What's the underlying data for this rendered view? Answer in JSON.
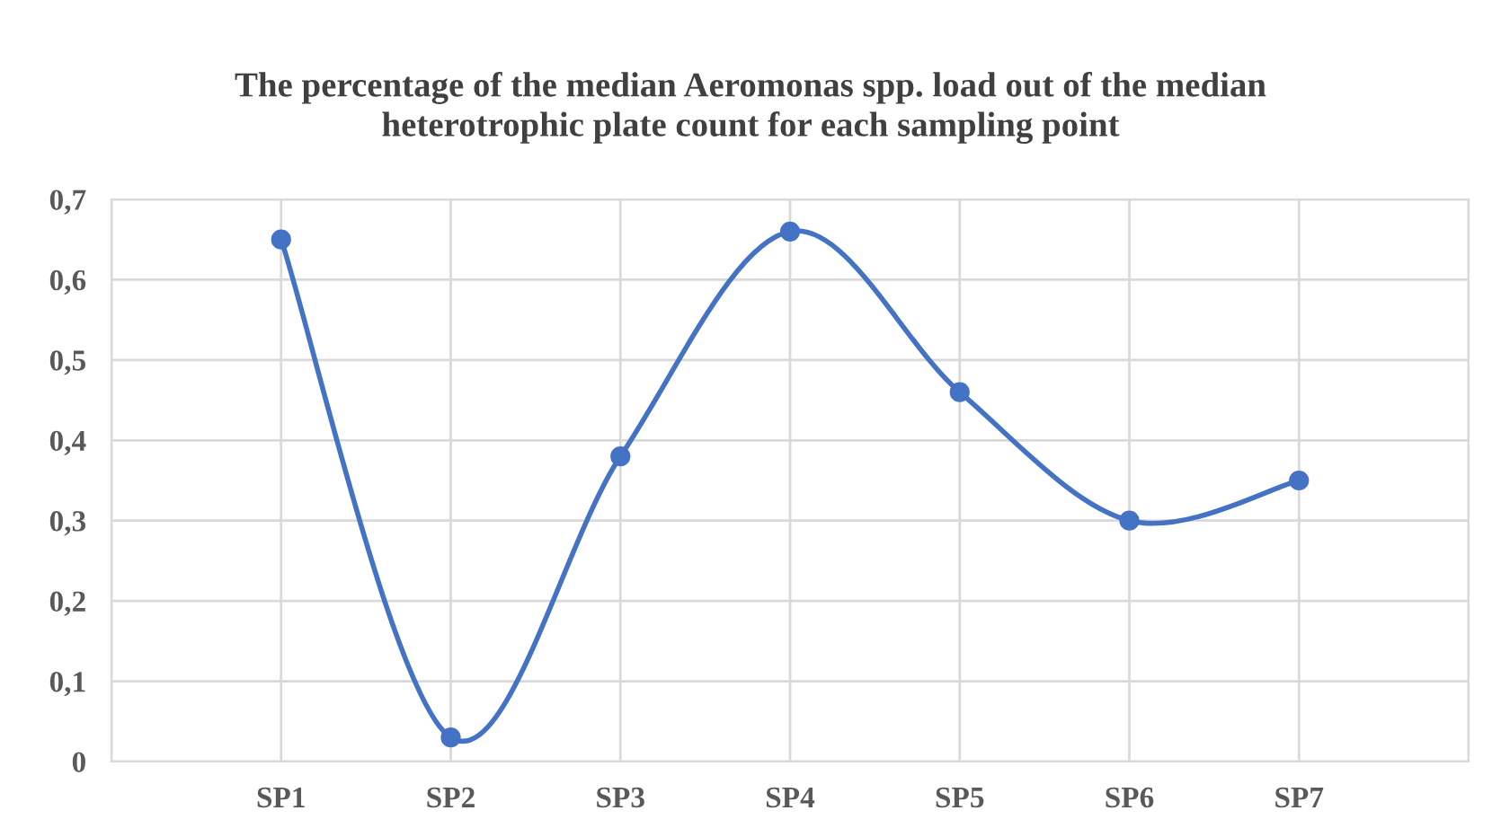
{
  "chart_data": {
    "type": "line",
    "title": "The percentage of the median Aeromonas spp. load out of the median\nheterotrophic plate count for each sampling point",
    "categories": [
      null,
      "SP1",
      "SP2",
      "SP3",
      "SP4",
      "SP5",
      "SP6",
      "SP7",
      null
    ],
    "series": [
      {
        "color": "#4472c4",
        "values": [
          null,
          0.65,
          0.03,
          0.38,
          0.66,
          0.46,
          0.3,
          0.35,
          null
        ]
      }
    ],
    "ylim": [
      0,
      0.7
    ],
    "yticks": [
      0,
      {
        "value": 0.1,
        "label": "0,1"
      },
      {
        "value": 0.2,
        "label": "0,2"
      },
      {
        "value": 0.3,
        "label": "0,3"
      },
      {
        "value": 0.4,
        "label": "0,4"
      },
      {
        "value": 0.5,
        "label": "0,5"
      },
      {
        "value": 0.6,
        "label": "0,6"
      },
      {
        "value": 0.7,
        "label": "0,7"
      }
    ],
    "grid": true,
    "marker": "circle",
    "line_style": "solid",
    "legend": false
  }
}
